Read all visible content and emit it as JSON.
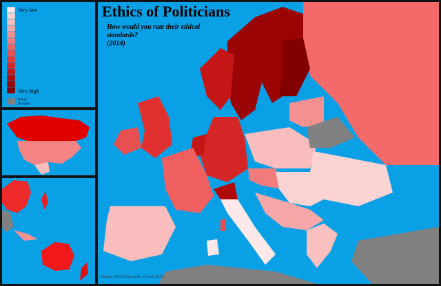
{
  "header": {
    "title": "Ethics of Politicians",
    "subtitle": [
      "How would you rate their ethical",
      "standards?",
      "(2014)"
    ]
  },
  "legend": {
    "low_label": "Very low",
    "high_label": "Very high",
    "na_label": [
      "N/A or",
      "No Data"
    ],
    "colors": [
      "#fde9e9",
      "#fbd3d3",
      "#f9bdbd",
      "#f7a7a7",
      "#f59191",
      "#f27b7b",
      "#ee6565",
      "#e84f4f",
      "#e03a3a",
      "#d42626",
      "#c41616",
      "#b00a0a",
      "#9a0404",
      "#820000"
    ],
    "na_color": "#808080"
  },
  "source": "Source: World Economic Forum 2014"
}
